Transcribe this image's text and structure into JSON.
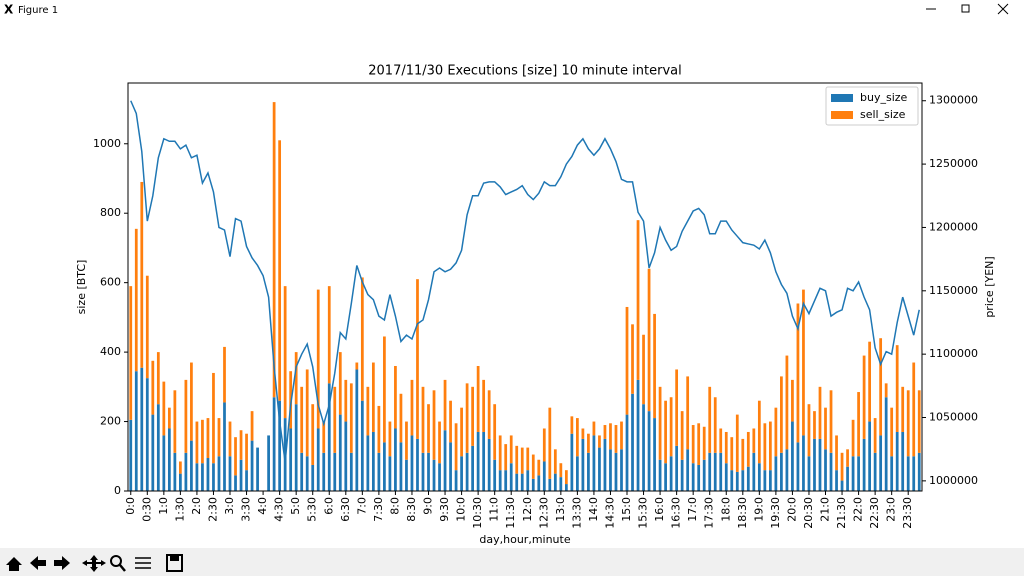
{
  "window_title": "Figure 1",
  "chart_data": {
    "type": "bar",
    "title": "2017/11/30 Executions [size] 10 minute interval",
    "xlabel": "day,hour,minute",
    "ylabel": "size [BTC]",
    "y2label": "price [YEN]",
    "categories": [
      "0:0",
      null,
      null,
      "0:30",
      null,
      null,
      "1:0",
      null,
      null,
      "1:30",
      null,
      null,
      "2:0",
      null,
      null,
      "2:30",
      null,
      null,
      "3:0",
      null,
      null,
      "3:30",
      null,
      null,
      "4:0",
      null,
      null,
      "4:30",
      null,
      null,
      "5:0",
      null,
      null,
      "5:30",
      null,
      null,
      "6:0",
      null,
      null,
      "6:30",
      null,
      null,
      "7:0",
      null,
      null,
      "7:30",
      null,
      null,
      "8:0",
      null,
      null,
      "8:30",
      null,
      null,
      "9:0",
      null,
      null,
      "9:30",
      null,
      null,
      "10:0",
      null,
      null,
      "10:30",
      null,
      null,
      "11:0",
      null,
      null,
      "11:30",
      null,
      null,
      "12:0",
      null,
      null,
      "12:30",
      null,
      null,
      "13:0",
      null,
      null,
      "13:30",
      null,
      null,
      "14:0",
      null,
      null,
      "14:30",
      null,
      null,
      "15:0",
      null,
      null,
      "15:30",
      null,
      null,
      "16:0",
      null,
      null,
      "16:30",
      null,
      null,
      "17:0",
      null,
      null,
      "17:30",
      null,
      null,
      "18:0",
      null,
      null,
      "18:30",
      null,
      null,
      "19:0",
      null,
      null,
      "19:30",
      null,
      null,
      "20:0",
      null,
      null,
      "20:30",
      null,
      null,
      "21:0",
      null,
      null,
      "21:30",
      null,
      null,
      "22:0",
      null,
      null,
      "22:30",
      null,
      null,
      "23:0",
      null,
      null,
      "23:30",
      null,
      null
    ],
    "stacked": true,
    "series": [
      {
        "name": "buy_size",
        "color": "#1f77b4",
        "values": [
          205,
          345,
          355,
          325,
          220,
          250,
          160,
          180,
          110,
          50,
          110,
          145,
          80,
          80,
          95,
          80,
          100,
          255,
          100,
          45,
          90,
          60,
          145,
          125,
          0,
          160,
          270,
          260,
          210,
          180,
          250,
          110,
          100,
          75,
          180,
          110,
          310,
          110,
          220,
          200,
          110,
          350,
          260,
          160,
          170,
          110,
          140,
          100,
          180,
          140,
          90,
          160,
          150,
          110,
          110,
          90,
          80,
          175,
          140,
          60,
          100,
          110,
          130,
          170,
          170,
          150,
          90,
          60,
          60,
          80,
          50,
          50,
          60,
          35,
          45,
          85,
          35,
          50,
          40,
          20,
          165,
          100,
          150,
          110,
          160,
          125,
          150,
          120,
          110,
          120,
          220,
          280,
          320,
          250,
          230,
          210,
          90,
          80,
          100,
          130,
          90,
          120,
          80,
          75,
          90,
          110,
          110,
          110,
          80,
          60,
          55,
          60,
          70,
          110,
          80,
          60,
          60,
          100,
          110,
          120,
          200,
          140,
          160,
          100,
          150,
          150,
          120,
          110,
          60,
          30,
          70,
          100,
          100,
          150,
          200,
          110,
          160,
          270,
          100,
          170,
          170,
          100,
          100,
          110
        ]
      },
      {
        "name": "sell_size",
        "color": "#ff7f0e",
        "values": [
          385,
          410,
          535,
          295,
          155,
          150,
          155,
          60,
          180,
          35,
          210,
          225,
          120,
          125,
          115,
          260,
          110,
          160,
          100,
          110,
          85,
          105,
          85,
          0,
          0,
          0,
          850,
          750,
          380,
          165,
          150,
          190,
          250,
          175,
          400,
          90,
          280,
          190,
          180,
          120,
          200,
          20,
          355,
          140,
          200,
          135,
          305,
          100,
          180,
          140,
          110,
          160,
          460,
          190,
          140,
          200,
          120,
          145,
          120,
          135,
          140,
          200,
          170,
          190,
          150,
          140,
          160,
          100,
          75,
          80,
          80,
          75,
          65,
          70,
          45,
          95,
          205,
          70,
          40,
          40,
          50,
          110,
          30,
          55,
          40,
          35,
          40,
          75,
          80,
          80,
          310,
          200,
          460,
          200,
          410,
          300,
          210,
          180,
          170,
          220,
          140,
          210,
          110,
          120,
          95,
          190,
          160,
          70,
          90,
          95,
          165,
          90,
          100,
          70,
          180,
          135,
          140,
          140,
          220,
          270,
          120,
          400,
          420,
          150,
          80,
          150,
          120,
          180,
          100,
          80,
          50,
          105,
          185,
          240,
          230,
          100,
          280,
          40,
          140,
          250,
          130,
          190,
          270,
          180
        ]
      }
    ],
    "price_line": {
      "color": "#1f77b4",
      "axis": "y2",
      "values": [
        1300000,
        1290000,
        1260000,
        1205000,
        1225000,
        1255000,
        1270000,
        1268000,
        1268000,
        1262000,
        1265000,
        1255000,
        1257000,
        1235000,
        1243000,
        1228000,
        1200000,
        1198000,
        1177000,
        1207000,
        1205000,
        1185000,
        1176000,
        1170000,
        1162000,
        1145000,
        1090000,
        1047000,
        1015000,
        1060000,
        1090000,
        1100000,
        1108000,
        1090000,
        1060000,
        1045000,
        1060000,
        1085000,
        1117000,
        1112000,
        1140000,
        1170000,
        1157000,
        1147000,
        1143000,
        1130000,
        1127000,
        1147000,
        1130000,
        1110000,
        1115000,
        1112000,
        1124000,
        1127000,
        1143000,
        1165000,
        1168000,
        1165000,
        1167000,
        1172000,
        1182000,
        1210000,
        1225000,
        1225000,
        1235000,
        1236000,
        1236000,
        1232000,
        1226000,
        1228000,
        1230000,
        1233000,
        1226000,
        1222000,
        1227000,
        1236000,
        1233000,
        1233000,
        1240000,
        1250000,
        1256000,
        1265000,
        1270000,
        1262000,
        1257000,
        1262000,
        1270000,
        1262000,
        1252000,
        1238000,
        1236000,
        1236000,
        1212000,
        1205000,
        1168000,
        1180000,
        1200000,
        1190000,
        1182000,
        1185000,
        1197000,
        1205000,
        1213000,
        1215000,
        1210000,
        1195000,
        1195000,
        1205000,
        1205000,
        1198000,
        1193000,
        1188000,
        1187000,
        1186000,
        1183000,
        1190000,
        1180000,
        1165000,
        1155000,
        1148000,
        1130000,
        1120000,
        1140000,
        1132000,
        1142000,
        1152000,
        1150000,
        1130000,
        1133000,
        1135000,
        1152000,
        1150000,
        1157000,
        1145000,
        1135000,
        1105000,
        1092000,
        1102000,
        1100000,
        1125000,
        1145000,
        1130000,
        1115000,
        1135000
      ]
    },
    "ylim": [
      0,
      1175
    ],
    "yticks": [
      0,
      200,
      400,
      600,
      800,
      1000
    ],
    "y2lim": [
      992000,
      1314000
    ],
    "y2ticks": [
      1000000,
      1050000,
      1100000,
      1150000,
      1200000,
      1250000,
      1300000
    ],
    "legend": "upper right"
  }
}
